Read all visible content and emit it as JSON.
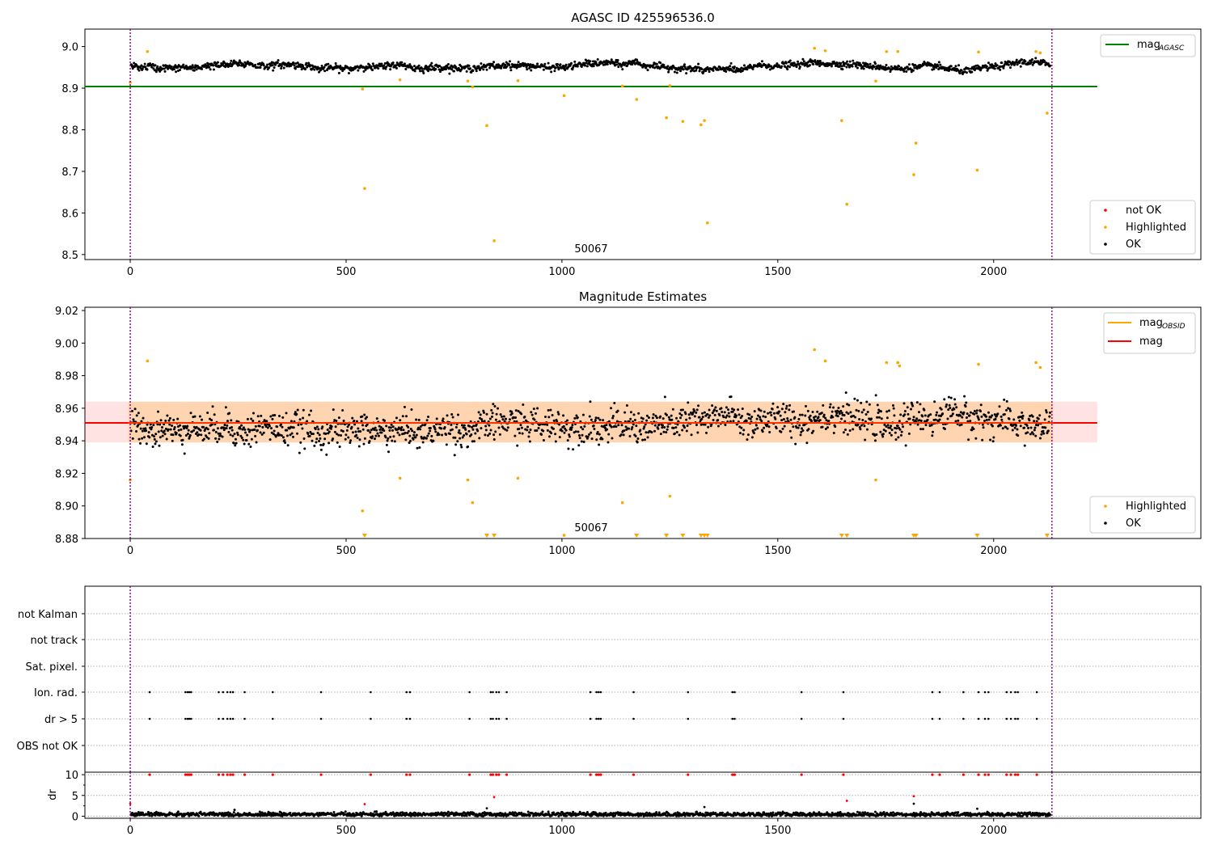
{
  "chart_data": [
    {
      "type": "scatter",
      "title": "AGASC ID 425596536.0",
      "xlim": [
        -105,
        2480
      ],
      "ylim": [
        8.488,
        9.042
      ],
      "xticks": [
        "0",
        "500",
        "1000",
        "1500",
        "2000"
      ],
      "yticks": [
        "8.5",
        "8.6",
        "8.7",
        "8.8",
        "8.9",
        "9.0"
      ],
      "annotation": "50067",
      "vlines": [
        0,
        2135
      ],
      "mag_agasc": 8.904,
      "ok_band": {
        "base": 8.952,
        "amplitude": 0.012,
        "scatter": 0.008,
        "n": 1600
      },
      "highlighted": [
        {
          "x": 0,
          "y": 8.914
        },
        {
          "x": 40,
          "y": 8.988
        },
        {
          "x": 538,
          "y": 8.898
        },
        {
          "x": 543,
          "y": 8.659
        },
        {
          "x": 625,
          "y": 8.92
        },
        {
          "x": 782,
          "y": 8.917
        },
        {
          "x": 793,
          "y": 8.903
        },
        {
          "x": 826,
          "y": 8.81
        },
        {
          "x": 843,
          "y": 8.533
        },
        {
          "x": 898,
          "y": 8.918
        },
        {
          "x": 1005,
          "y": 8.882
        },
        {
          "x": 1140,
          "y": 8.905
        },
        {
          "x": 1173,
          "y": 8.873
        },
        {
          "x": 1242,
          "y": 8.829
        },
        {
          "x": 1250,
          "y": 8.906
        },
        {
          "x": 1280,
          "y": 8.82
        },
        {
          "x": 1322,
          "y": 8.812
        },
        {
          "x": 1330,
          "y": 8.822
        },
        {
          "x": 1337,
          "y": 8.576
        },
        {
          "x": 1585,
          "y": 8.996
        },
        {
          "x": 1610,
          "y": 8.99
        },
        {
          "x": 1648,
          "y": 8.822
        },
        {
          "x": 1660,
          "y": 8.621
        },
        {
          "x": 1727,
          "y": 8.917
        },
        {
          "x": 1752,
          "y": 8.988
        },
        {
          "x": 1778,
          "y": 8.988
        },
        {
          "x": 1815,
          "y": 8.692
        },
        {
          "x": 1820,
          "y": 8.768
        },
        {
          "x": 1962,
          "y": 8.703
        },
        {
          "x": 1965,
          "y": 8.987
        },
        {
          "x": 2098,
          "y": 8.988
        },
        {
          "x": 2108,
          "y": 8.985
        },
        {
          "x": 2124,
          "y": 8.84
        }
      ],
      "legend_top": [
        {
          "label": "mag",
          "sub": "AGASC",
          "color": "#008000"
        }
      ],
      "legend_bottom": [
        {
          "label": "not OK",
          "color": "#ff0000"
        },
        {
          "label": "Highlighted",
          "color": "#ffa500"
        },
        {
          "label": "OK",
          "color": "#000000"
        }
      ]
    },
    {
      "type": "scatter",
      "title": "Magnitude Estimates",
      "xlim": [
        -105,
        2480
      ],
      "ylim": [
        8.88,
        9.022
      ],
      "xticks": [
        "0",
        "500",
        "1000",
        "1500",
        "2000"
      ],
      "yticks": [
        "8.88",
        "8.90",
        "8.92",
        "8.94",
        "8.96",
        "8.98",
        "9.00",
        "9.02"
      ],
      "annotation": "50067",
      "vlines": [
        0,
        2135
      ],
      "mag": 8.951,
      "mag_band": [
        8.939,
        8.964
      ],
      "mag_obsid_band": [
        8.939,
        8.964
      ],
      "ok_band": {
        "base": 8.95,
        "amplitude": 0.01,
        "scatter": 0.01,
        "n": 1600
      },
      "highlighted": [
        {
          "x": 0,
          "y": 8.916
        },
        {
          "x": 40,
          "y": 8.989
        },
        {
          "x": 538,
          "y": 8.897
        },
        {
          "x": 625,
          "y": 8.917
        },
        {
          "x": 782,
          "y": 8.916
        },
        {
          "x": 793,
          "y": 8.902
        },
        {
          "x": 898,
          "y": 8.917
        },
        {
          "x": 1005,
          "y": 8.882
        },
        {
          "x": 1140,
          "y": 8.902
        },
        {
          "x": 1250,
          "y": 8.906
        },
        {
          "x": 1585,
          "y": 8.996
        },
        {
          "x": 1610,
          "y": 8.989
        },
        {
          "x": 1727,
          "y": 8.916
        },
        {
          "x": 1752,
          "y": 8.988
        },
        {
          "x": 1778,
          "y": 8.988
        },
        {
          "x": 1782,
          "y": 8.986
        },
        {
          "x": 1965,
          "y": 8.987
        },
        {
          "x": 2098,
          "y": 8.988
        },
        {
          "x": 2108,
          "y": 8.985
        }
      ],
      "below_range_x": [
        543,
        826,
        843,
        1173,
        1242,
        1280,
        1322,
        1330,
        1337,
        1648,
        1660,
        1815,
        1820,
        1962,
        2124
      ],
      "legend_top": [
        {
          "label": "mag",
          "sub": "OBSID",
          "color": "#ffa500"
        },
        {
          "label": "mag",
          "sub": "",
          "color": "#ff0000"
        }
      ],
      "legend_bottom": [
        {
          "label": "Highlighted",
          "color": "#ffa500"
        },
        {
          "label": "OK",
          "color": "#000000"
        }
      ]
    },
    {
      "type": "scatter",
      "xlim": [
        -105,
        2480
      ],
      "flag_labels": [
        "not Kalman",
        "not track",
        "Sat. pixel.",
        "Ion. rad.",
        "dr > 5",
        "OBS not OK"
      ],
      "flag_x": [
        45,
        128,
        133,
        137,
        141,
        205,
        215,
        225,
        232,
        238,
        265,
        330,
        442,
        557,
        640,
        648,
        786,
        835,
        840,
        848,
        854,
        872,
        1066,
        1080,
        1085,
        1090,
        1166,
        1292,
        1395,
        1400,
        1555,
        1652,
        1858,
        1875,
        1930,
        1965,
        1980,
        1988,
        2030,
        2040,
        2050,
        2056,
        2100
      ],
      "vlines": [
        0,
        2135
      ]
    },
    {
      "type": "scatter",
      "ylabel": "dr",
      "xlim": [
        -105,
        2480
      ],
      "ylim": [
        -0.5,
        10.6
      ],
      "xticks": [
        "0",
        "500",
        "1000",
        "1500",
        "2000"
      ],
      "yticks": [
        "0",
        "5",
        "10"
      ],
      "red_low": [
        {
          "x": 0,
          "y": 3.0
        },
        {
          "x": 543,
          "y": 2.9
        },
        {
          "x": 843,
          "y": 4.6
        },
        {
          "x": 1660,
          "y": 3.7
        },
        {
          "x": 1815,
          "y": 4.8
        }
      ],
      "black_high": [
        {
          "x": 826,
          "y": 1.9
        },
        {
          "x": 1330,
          "y": 2.2
        },
        {
          "x": 1815,
          "y": 3.0
        },
        {
          "x": 1962,
          "y": 1.8
        }
      ],
      "vlines": [
        0,
        2135
      ]
    }
  ]
}
